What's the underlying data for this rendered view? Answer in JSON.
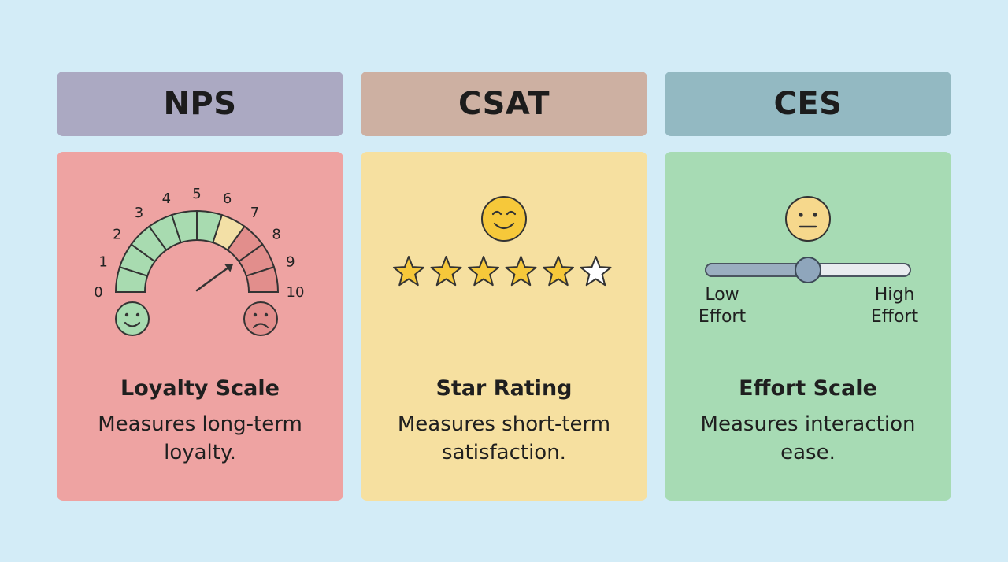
{
  "cards": [
    {
      "header": "NPS",
      "title": "Loyalty Scale",
      "description": "Measures long-term loyalty.",
      "gauge": {
        "scale_labels": [
          "0",
          "1",
          "2",
          "3",
          "4",
          "5",
          "6",
          "7",
          "8",
          "9",
          "10"
        ],
        "segment_colors": [
          "#a8dbb0",
          "#a8dbb0",
          "#a8dbb0",
          "#a8dbb0",
          "#a8dbb0",
          "#a8dbb0",
          "#f3e0a6",
          "#e28e8c",
          "#e28e8c",
          "#e28e8c"
        ],
        "needle_value": 8,
        "left_face": "smiley-face-icon",
        "right_face": "sad-face-icon"
      }
    },
    {
      "header": "CSAT",
      "title": "Star Rating",
      "description": "Measures short-term satisfaction.",
      "rating": {
        "filled": 5,
        "total": 6,
        "star_color": "#f6c83a",
        "face": "smiley-face-icon"
      }
    },
    {
      "header": "CES",
      "title": "Effort Scale",
      "description": "Measures interaction ease.",
      "slider": {
        "value": 0.5,
        "low_label": "Low Effort",
        "high_label": "High Effort",
        "face": "neutral-face-icon"
      }
    }
  ],
  "colors": {
    "background": "#d3ecf7",
    "nps_header": "#aba9c2",
    "csat_header": "#cdb0a2",
    "ces_header": "#93b9c2",
    "nps_card": "#eea3a2",
    "csat_card": "#f6e0a0",
    "ces_card": "#a7dbb4"
  }
}
